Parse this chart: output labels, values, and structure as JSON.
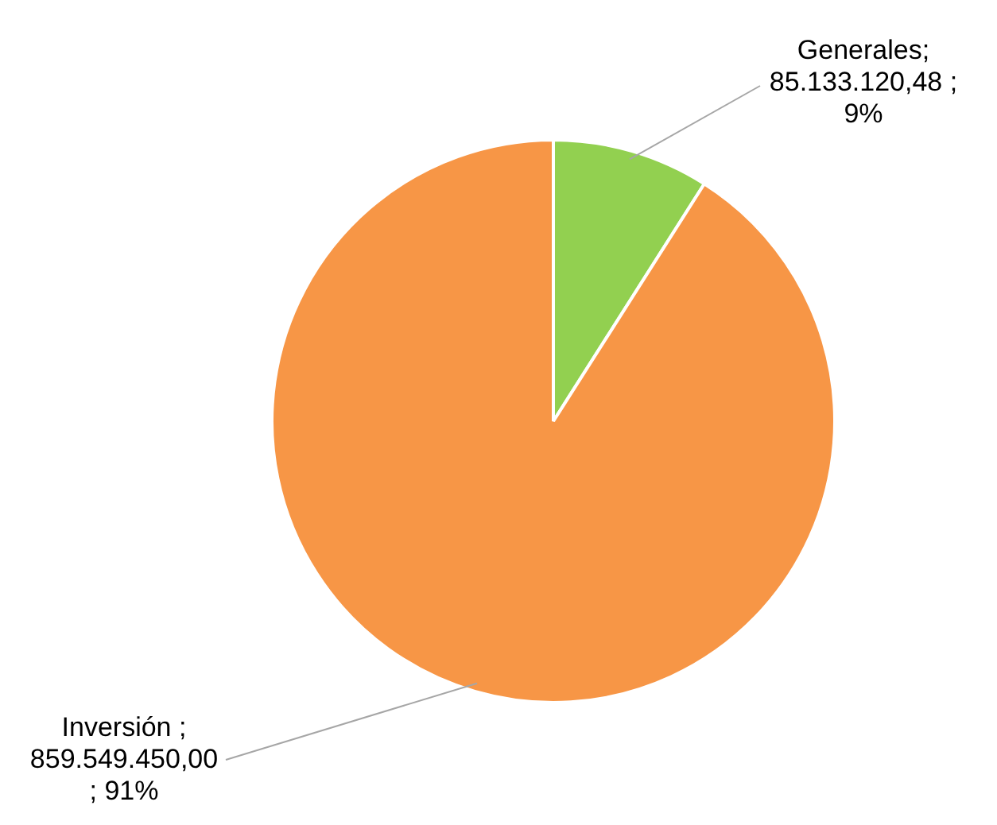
{
  "chart_data": {
    "type": "pie",
    "categories": [
      "Generales",
      "Inversión"
    ],
    "values": [
      85133120.48,
      859549450.0
    ],
    "colors": [
      "#92d050",
      "#f79646"
    ],
    "value_labels": [
      "; 85.133.120,48 ; 9%",
      " ; 859.549.450,00 ; 91%"
    ],
    "legend": false
  }
}
